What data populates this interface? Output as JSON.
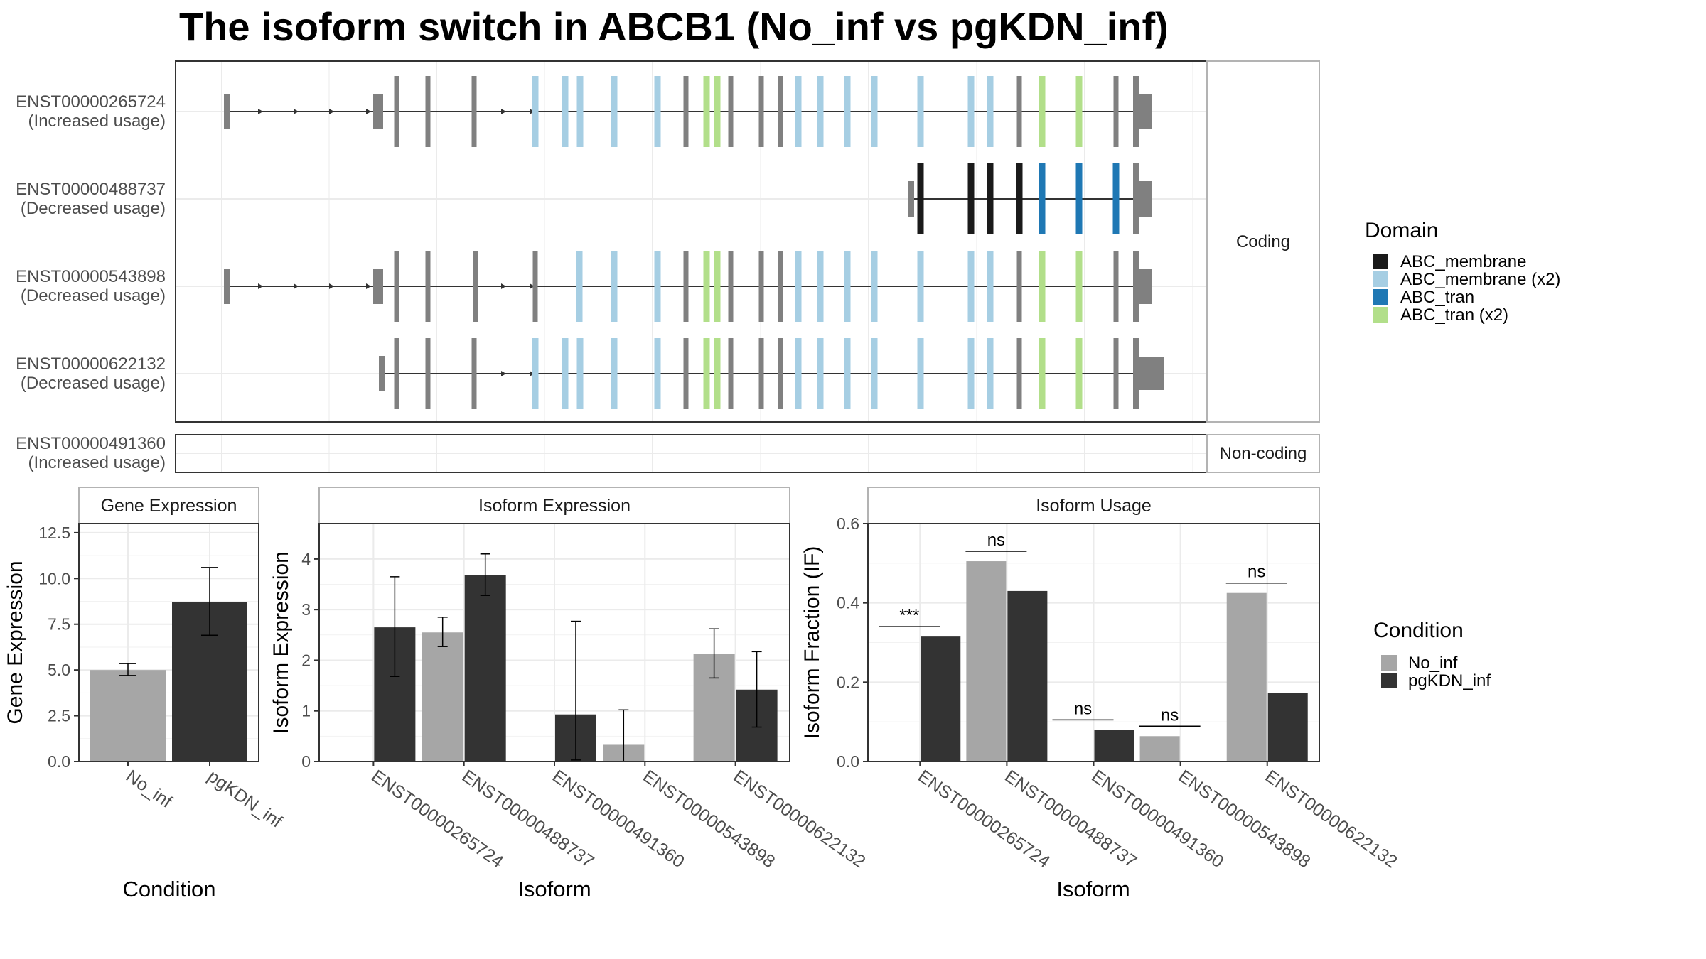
{
  "title": "The isoform switch in ABCB1 (No_inf vs pgKDN_inf)",
  "colors": {
    "exon": "#808080",
    "ABC_membrane": "#1a1a1a",
    "ABC_membrane (x2)": "#a6cee3",
    "ABC_tran": "#1f78b4",
    "ABC_tran (x2)": "#b2df8a",
    "No_inf": "#a6a6a6",
    "pgKDN_inf": "#333333",
    "panel_border": "#333333",
    "strip_border": "#b3b3b3",
    "grid": "#ebebeb"
  },
  "structure": {
    "coding_strip": "Coding",
    "noncoding_strip": "Non-coding",
    "transcripts": [
      {
        "id": "ENST00000265724",
        "usage": "(Increased usage)",
        "group": "coding"
      },
      {
        "id": "ENST00000488737",
        "usage": "(Decreased usage)",
        "group": "coding"
      },
      {
        "id": "ENST00000543898",
        "usage": "(Decreased usage)",
        "group": "coding"
      },
      {
        "id": "ENST00000622132",
        "usage": "(Decreased usage)",
        "group": "coding"
      },
      {
        "id": "ENST00000491360",
        "usage": "(Increased usage)",
        "group": "noncoding"
      }
    ]
  },
  "domain_legend": {
    "title": "Domain",
    "items": [
      {
        "label": "ABC_membrane",
        "color": "#1a1a1a"
      },
      {
        "label": "ABC_membrane (x2)",
        "color": "#a6cee3"
      },
      {
        "label": "ABC_tran",
        "color": "#1f78b4"
      },
      {
        "label": "ABC_tran (x2)",
        "color": "#b2df8a"
      }
    ]
  },
  "condition_legend": {
    "title": "Condition",
    "items": [
      {
        "label": "No_inf",
        "color": "#a6a6a6"
      },
      {
        "label": "pgKDN_inf",
        "color": "#333333"
      }
    ]
  },
  "chart_data": [
    {
      "type": "bar",
      "title": "Gene Expression",
      "xlabel": "Condition",
      "ylabel": "Gene Expression",
      "ylim": [
        0,
        13
      ],
      "yticks": [
        "0.0",
        "2.5",
        "5.0",
        "7.5",
        "10.0",
        "12.5"
      ],
      "categories": [
        "No_inf",
        "pgKDN_inf"
      ],
      "values": [
        5.0,
        8.7
      ],
      "err_low": [
        4.7,
        6.9
      ],
      "err_high": [
        5.35,
        10.6
      ]
    },
    {
      "type": "bar",
      "title": "Isoform Expression",
      "xlabel": "Isoform",
      "ylabel": "Isoform Expression",
      "ylim": [
        0,
        4.7
      ],
      "yticks": [
        "0",
        "1",
        "2",
        "3",
        "4"
      ],
      "categories": [
        "ENST00000265724",
        "ENST00000488737",
        "ENST00000491360",
        "ENST00000543898",
        "ENST00000622132"
      ],
      "series": [
        {
          "name": "No_inf",
          "values": [
            0.0,
            2.55,
            0.0,
            0.33,
            2.12
          ],
          "err_low": [
            0.0,
            2.27,
            0.0,
            0.0,
            1.65
          ],
          "err_high": [
            0.0,
            2.85,
            0.0,
            1.02,
            2.62
          ]
        },
        {
          "name": "pgKDN_inf",
          "values": [
            2.65,
            3.68,
            0.93,
            0.0,
            1.42
          ],
          "err_low": [
            1.68,
            3.28,
            0.03,
            0.0,
            0.68
          ],
          "err_high": [
            3.65,
            4.1,
            2.77,
            0.0,
            2.17
          ]
        }
      ]
    },
    {
      "type": "bar",
      "title": "Isoform Usage",
      "xlabel": "Isoform",
      "ylabel": "Isoform Fraction (IF)",
      "ylim": [
        0,
        0.6
      ],
      "yticks": [
        "0.0",
        "0.2",
        "0.4",
        "0.6"
      ],
      "categories": [
        "ENST00000265724",
        "ENST00000488737",
        "ENST00000491360",
        "ENST00000543898",
        "ENST00000622132"
      ],
      "series": [
        {
          "name": "No_inf",
          "values": [
            0.0,
            0.505,
            0.0,
            0.064,
            0.425
          ]
        },
        {
          "name": "pgKDN_inf",
          "values": [
            0.315,
            0.43,
            0.08,
            0.0,
            0.172
          ]
        }
      ],
      "significance": [
        "***",
        "ns",
        "ns",
        "ns",
        "ns"
      ]
    }
  ]
}
